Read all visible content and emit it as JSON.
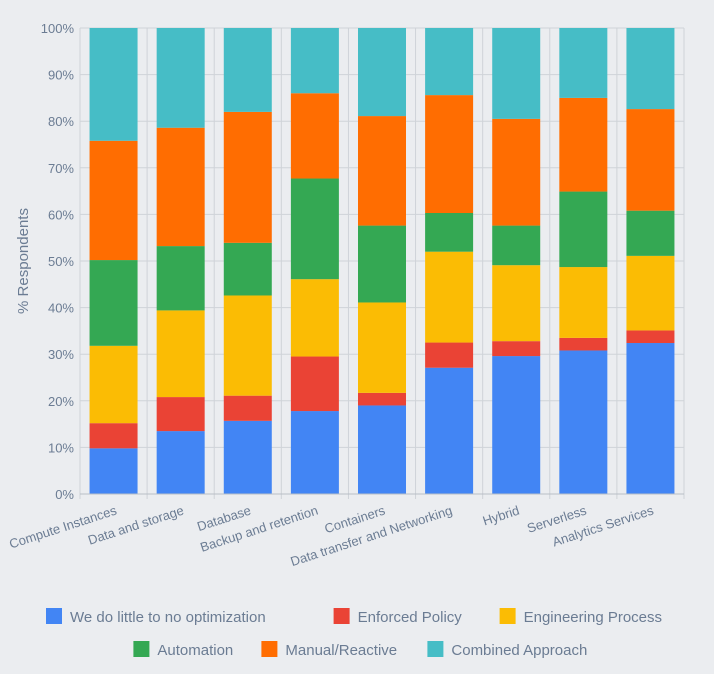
{
  "chart_data": {
    "type": "bar",
    "stacked": true,
    "title": "",
    "xlabel": "",
    "ylabel": "% Respondents",
    "ylim": [
      0,
      100
    ],
    "y_ticks": [
      0,
      10,
      20,
      30,
      40,
      50,
      60,
      70,
      80,
      90,
      100
    ],
    "y_tick_labels": [
      "0%",
      "10%",
      "20%",
      "30%",
      "40%",
      "50%",
      "60%",
      "70%",
      "80%",
      "90%",
      "100%"
    ],
    "grid": true,
    "legend_position": "bottom",
    "categories": [
      "Compute Instances",
      "Data and storage",
      "Database",
      "Backup and retention",
      "Containers",
      "Data transfer and Networking",
      "Hybrid",
      "Serverless",
      "Analytics Services"
    ],
    "series": [
      {
        "name": "We do little to no optimization",
        "color": "#4285f4",
        "values": [
          9.8,
          13.5,
          15.7,
          17.8,
          19.0,
          27.1,
          29.6,
          30.8,
          32.4
        ]
      },
      {
        "name": "Enforced Policy",
        "color": "#ea4335",
        "values": [
          5.4,
          7.3,
          5.4,
          11.7,
          2.7,
          5.4,
          3.2,
          2.7,
          2.7
        ]
      },
      {
        "name": "Engineering Process",
        "color": "#fbbc04",
        "values": [
          16.6,
          18.6,
          21.5,
          16.6,
          19.4,
          19.5,
          16.3,
          15.2,
          16.0
        ]
      },
      {
        "name": "Automation",
        "color": "#34a853",
        "values": [
          18.4,
          13.8,
          11.3,
          21.6,
          16.5,
          8.3,
          8.5,
          16.2,
          9.7
        ]
      },
      {
        "name": "Manual/Reactive",
        "color": "#ff6d01",
        "values": [
          25.6,
          25.4,
          28.1,
          18.3,
          23.5,
          25.3,
          22.9,
          20.1,
          21.8
        ]
      },
      {
        "name": "Combined Approach",
        "color": "#46bdc6",
        "values": [
          24.2,
          21.4,
          18.0,
          14.0,
          18.9,
          14.4,
          19.5,
          15.0,
          17.4
        ]
      }
    ]
  }
}
